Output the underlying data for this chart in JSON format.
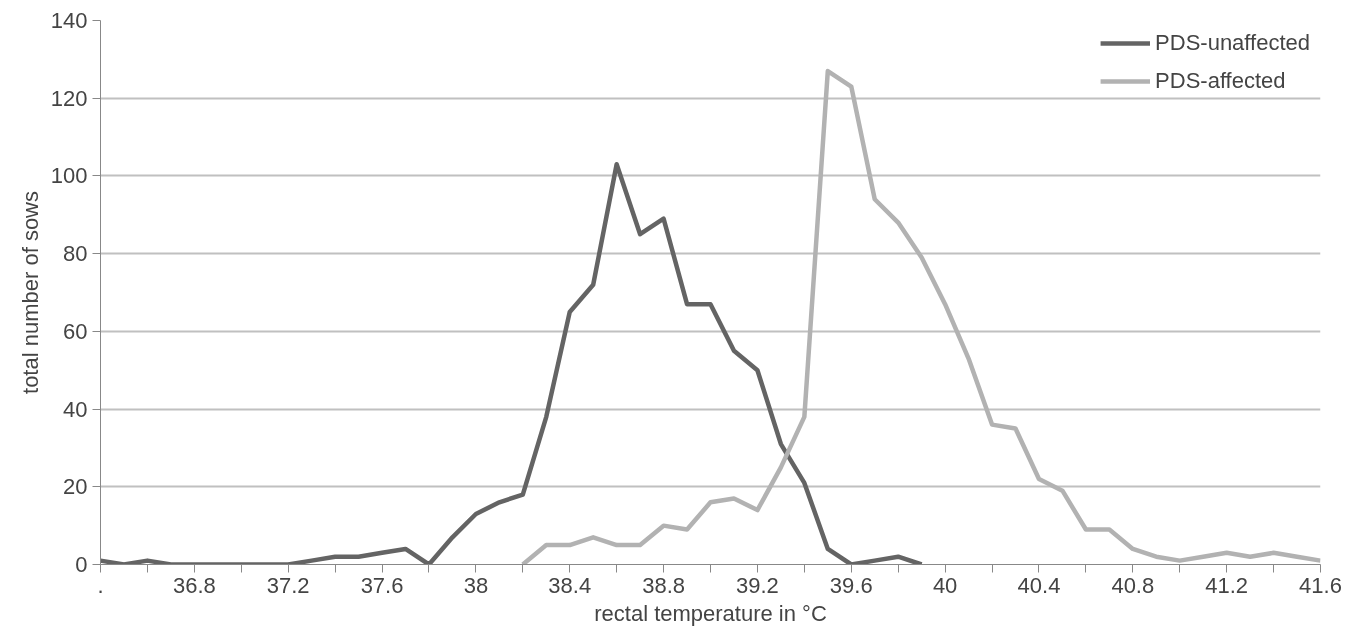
{
  "chart_data": {
    "type": "line",
    "xlabel": "rectal temperature in °C",
    "ylabel": "total number of sows",
    "categories": [
      ".",
      null,
      null,
      null,
      "36.8",
      null,
      null,
      null,
      "37.2",
      null,
      null,
      null,
      "37.6",
      null,
      null,
      null,
      "38",
      null,
      null,
      null,
      "38.4",
      null,
      null,
      null,
      "38.8",
      null,
      null,
      null,
      "39.2",
      null,
      null,
      null,
      "39.6",
      null,
      null,
      null,
      "40",
      null,
      null,
      null,
      "40.4",
      null,
      null,
      null,
      "40.8",
      null,
      null,
      null,
      "41.2",
      null,
      null,
      null,
      "41.6"
    ],
    "series": [
      {
        "name": "PDS-unaffected",
        "color": "#646464",
        "values": [
          1,
          0,
          1,
          0,
          0,
          0,
          0,
          0,
          0,
          1,
          2,
          2,
          3,
          4,
          0,
          7,
          13,
          16,
          18,
          38,
          65,
          72,
          103,
          85,
          89,
          67,
          67,
          55,
          50,
          31,
          21,
          4,
          0,
          1,
          2,
          0,
          null,
          null,
          null,
          null,
          null,
          null,
          null,
          null,
          null,
          null,
          null,
          null,
          null,
          null,
          null,
          null,
          null
        ]
      },
      {
        "name": "PDS-affected",
        "color": "#b2b2b2",
        "values": [
          null,
          null,
          null,
          null,
          null,
          null,
          null,
          null,
          null,
          null,
          null,
          null,
          null,
          null,
          null,
          null,
          null,
          null,
          0,
          5,
          5,
          7,
          5,
          5,
          10,
          9,
          16,
          17,
          14,
          25,
          38,
          127,
          123,
          94,
          88,
          79,
          67,
          53,
          36,
          35,
          22,
          19,
          9,
          9,
          4,
          2,
          1,
          2,
          3,
          2,
          3,
          2,
          1
        ]
      }
    ],
    "ylim": [
      0,
      140
    ],
    "yticks": [
      0,
      20,
      40,
      60,
      80,
      100,
      120,
      140
    ],
    "grid": "y",
    "legend": "top right",
    "line_style": "solid",
    "marker": "none"
  }
}
